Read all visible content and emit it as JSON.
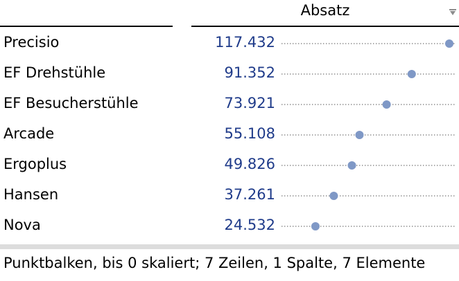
{
  "column_header": {
    "label": "Absatz",
    "menu_icon": "filter-triangle-icon"
  },
  "chart_data": {
    "type": "dot",
    "series": [
      {
        "name": "Absatz",
        "values": [
          117432,
          91352,
          73921,
          55108,
          49826,
          37261,
          24532
        ]
      }
    ],
    "categories": [
      "Precisio",
      "EF Drehstühle",
      "EF Besucherstühle",
      "Arcade",
      "Ergoplus",
      "Hansen",
      "Nova"
    ],
    "value_labels": [
      "117.432",
      "91.352",
      "73.921",
      "55.108",
      "49.826",
      "37.261",
      "24.532"
    ],
    "xlim": [
      0,
      117432
    ],
    "dot_color": "#7f98c6",
    "line_color": "#8a8a8a"
  },
  "status_text": "Punktbalken, bis 0 skaliert; 7 Zeilen, 1 Spalte, 7 Elemente"
}
